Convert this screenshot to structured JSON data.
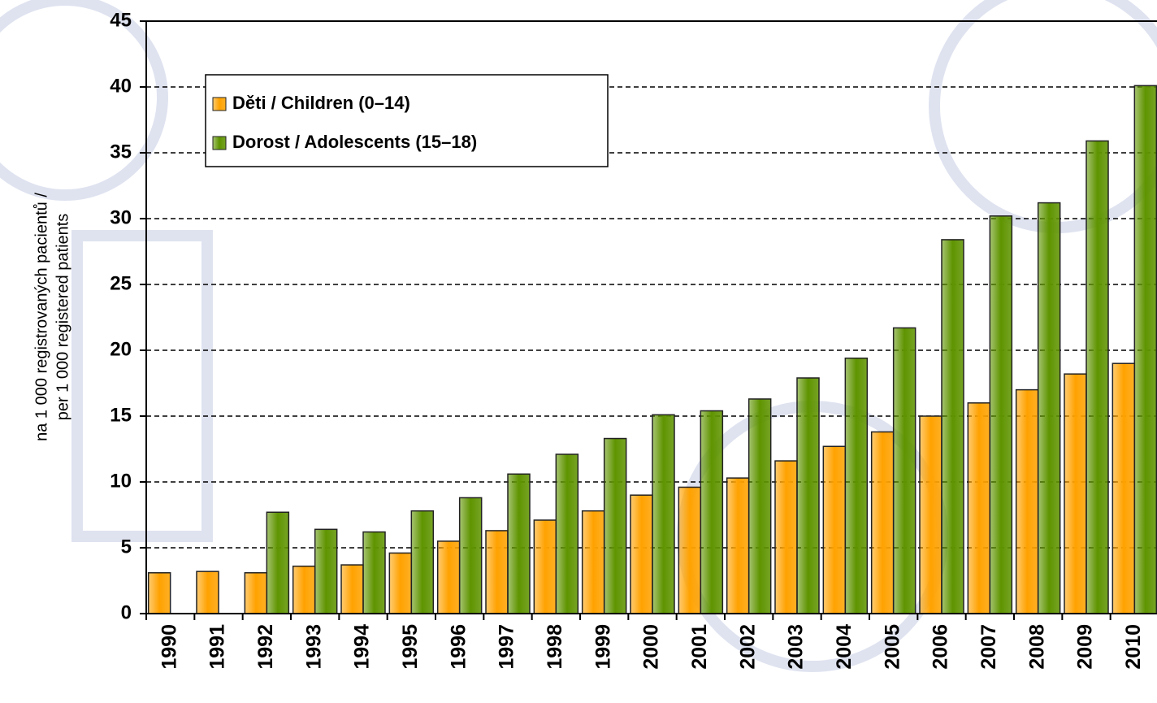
{
  "chart_data": {
    "type": "bar",
    "ylabel": [
      "na 1 000 registrovaných pacientů /",
      "per 1 000 registered patients"
    ],
    "categories": [
      "1990",
      "1991",
      "1992",
      "1993",
      "1994",
      "1995",
      "1996",
      "1997",
      "1998",
      "1999",
      "2000",
      "2001",
      "2002",
      "2003",
      "2004",
      "2005",
      "2006",
      "2007",
      "2008",
      "2009",
      "2010"
    ],
    "series": [
      {
        "name": "Děti / Children (0–14)",
        "color": "#ffa200",
        "values": [
          3.1,
          3.2,
          3.1,
          3.6,
          3.7,
          4.6,
          5.5,
          6.3,
          7.1,
          7.8,
          9.0,
          9.6,
          10.3,
          11.6,
          12.7,
          13.8,
          15.0,
          16.0,
          17.0,
          18.2,
          19.0
        ]
      },
      {
        "name": "Dorost / Adolescents (15–18)",
        "color": "#5f9400",
        "values": [
          null,
          null,
          7.7,
          6.4,
          6.2,
          7.8,
          8.8,
          10.6,
          12.1,
          13.3,
          15.1,
          15.4,
          16.3,
          17.9,
          19.4,
          21.7,
          28.4,
          30.2,
          31.2,
          35.9,
          40.1
        ]
      }
    ],
    "ylim": [
      0,
      45
    ],
    "yticks": [
      0,
      5,
      10,
      15,
      20,
      25,
      30,
      35,
      40,
      45
    ],
    "grid": true
  }
}
